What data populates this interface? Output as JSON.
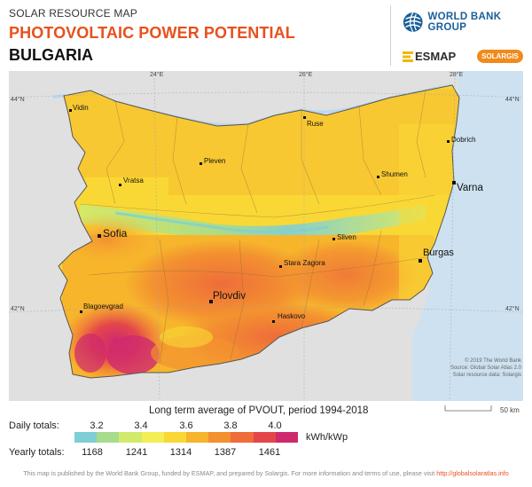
{
  "header": {
    "label": "SOLAR RESOURCE MAP",
    "title": "PHOTOVOLTAIC POWER POTENTIAL",
    "country": "BULGARIA",
    "logos": {
      "world_bank": "WORLD BANK GROUP",
      "esmap": "ESMAP",
      "solargis": "SOLARGIS"
    }
  },
  "map": {
    "graticule": {
      "top": [
        "24°E",
        "26°E",
        "28°E"
      ],
      "left": [
        "44°N",
        "42°N"
      ],
      "right": [
        "44°N",
        "42°N"
      ]
    },
    "cities": [
      {
        "name": "Vidin",
        "size": "small"
      },
      {
        "name": "Ruse",
        "size": "small"
      },
      {
        "name": "Dobrich",
        "size": "small"
      },
      {
        "name": "Pleven",
        "size": "small"
      },
      {
        "name": "Vratsa",
        "size": "small"
      },
      {
        "name": "Shumen",
        "size": "small"
      },
      {
        "name": "Varna",
        "size": "large"
      },
      {
        "name": "Sofia",
        "size": "large"
      },
      {
        "name": "Sliven",
        "size": "small"
      },
      {
        "name": "Burgas",
        "size": "large"
      },
      {
        "name": "Stara Zagora",
        "size": "small"
      },
      {
        "name": "Plovdiv",
        "size": "large"
      },
      {
        "name": "Blagoevgrad",
        "size": "small"
      },
      {
        "name": "Haskovo",
        "size": "small"
      }
    ],
    "credits": [
      "© 2019 The World Bank",
      "Source: Global Solar Atlas 2.0",
      "Solar resource data: Solargis"
    ],
    "scale_label": "50 km"
  },
  "legend": {
    "title": "Long term average of PVOUT, period 1994-2018",
    "daily_label": "Daily totals:",
    "yearly_label": "Yearly totals:",
    "daily_ticks": [
      "3.2",
      "3.4",
      "3.6",
      "3.8",
      "4.0"
    ],
    "yearly_ticks": [
      "1168",
      "1241",
      "1314",
      "1387",
      "1461"
    ],
    "unit": "kWh/kWp",
    "colors": [
      "#7ecfd5",
      "#a6dc8c",
      "#d2ea6c",
      "#f4ee54",
      "#f9d836",
      "#f7b52c",
      "#f39130",
      "#ee6d3a",
      "#e4474a",
      "#cf2a6e"
    ]
  },
  "footer": {
    "text": "This map is published by the World Bank Group, funded by ESMAP, and prepared by Solargis. For more information and terms of use, please visit",
    "link": "http://globalsolaratlas.info"
  }
}
